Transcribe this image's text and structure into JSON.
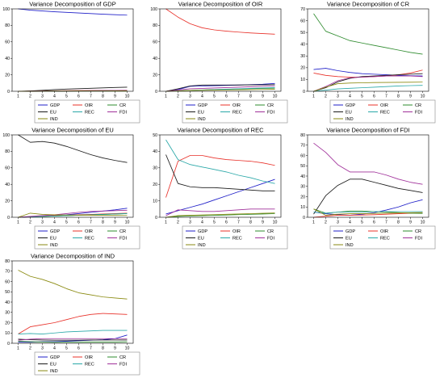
{
  "chart_data": [
    {
      "type": "line",
      "title": "Variance Decomposition of GDP",
      "x": [
        1,
        2,
        3,
        4,
        5,
        6,
        7,
        8,
        9,
        10
      ],
      "ylim": [
        0,
        100
      ],
      "yticks": [
        0,
        20,
        40,
        60,
        80,
        100
      ],
      "legend_position": "bottom",
      "series": [
        {
          "name": "GDP",
          "color": "#1f1fc8",
          "values": [
            100,
            98.5,
            97.5,
            96.5,
            95.8,
            95.0,
            94.3,
            93.6,
            93.0,
            92.4
          ]
        },
        {
          "name": "OIR",
          "color": "#e8312a",
          "values": [
            0,
            0.2,
            0.4,
            0.6,
            0.7,
            0.8,
            0.9,
            1.0,
            1.1,
            1.2
          ]
        },
        {
          "name": "CR",
          "color": "#2e8b2e",
          "values": [
            0,
            0.1,
            0.2,
            0.3,
            0.4,
            0.5,
            0.6,
            0.7,
            0.8,
            0.9
          ]
        },
        {
          "name": "EU",
          "color": "#1a1a1a",
          "values": [
            0,
            0.5,
            1.2,
            2.0,
            2.6,
            3.1,
            3.6,
            4.1,
            4.6,
            5.0
          ]
        },
        {
          "name": "REC",
          "color": "#2aa8a8",
          "values": [
            0,
            0.1,
            0.1,
            0.2,
            0.2,
            0.3,
            0.3,
            0.3,
            0.4,
            0.4
          ]
        },
        {
          "name": "FDI",
          "color": "#a0309a",
          "values": [
            0,
            0.2,
            0.4,
            0.5,
            0.6,
            0.7,
            0.8,
            0.9,
            1.0,
            1.1
          ]
        },
        {
          "name": "IND",
          "color": "#8a8a10",
          "values": [
            0,
            0.1,
            0.2,
            0.3,
            0.3,
            0.4,
            0.5,
            0.5,
            0.6,
            0.6
          ]
        }
      ]
    },
    {
      "type": "line",
      "title": "Variance Decomposition of OIR",
      "x": [
        1,
        2,
        3,
        4,
        5,
        6,
        7,
        8,
        9,
        10
      ],
      "ylim": [
        0,
        100
      ],
      "yticks": [
        0,
        20,
        40,
        60,
        80,
        100
      ],
      "legend_position": "bottom",
      "series": [
        {
          "name": "GDP",
          "color": "#1f1fc8",
          "values": [
            0,
            2.0,
            6.0,
            6.5,
            6.8,
            7.2,
            7.5,
            8.0,
            8.5,
            9.5
          ]
        },
        {
          "name": "OIR",
          "color": "#e8312a",
          "values": [
            100,
            90.0,
            82.0,
            77.0,
            74.5,
            73.0,
            71.8,
            70.8,
            70.0,
            69.3
          ]
        },
        {
          "name": "CR",
          "color": "#2e8b2e",
          "values": [
            0,
            0.5,
            1.0,
            1.5,
            2.0,
            2.4,
            2.8,
            3.2,
            3.5,
            3.8
          ]
        },
        {
          "name": "EU",
          "color": "#1a1a1a",
          "values": [
            0,
            3.0,
            6.5,
            7.5,
            7.5,
            7.6,
            7.7,
            7.8,
            7.9,
            8.0
          ]
        },
        {
          "name": "REC",
          "color": "#2aa8a8",
          "values": [
            0,
            0.5,
            1.0,
            1.5,
            2.0,
            2.5,
            3.0,
            3.5,
            4.0,
            4.5
          ]
        },
        {
          "name": "FDI",
          "color": "#a0309a",
          "values": [
            0,
            1.5,
            3.0,
            3.5,
            4.0,
            4.5,
            5.0,
            5.5,
            6.0,
            6.5
          ]
        },
        {
          "name": "IND",
          "color": "#8a8a10",
          "values": [
            0,
            0.5,
            1.0,
            1.2,
            1.4,
            1.6,
            1.8,
            2.0,
            2.2,
            2.4
          ]
        }
      ]
    },
    {
      "type": "line",
      "title": "Variance Decomposition of CR",
      "x": [
        1,
        2,
        3,
        4,
        5,
        6,
        7,
        8,
        9,
        10
      ],
      "ylim": [
        0,
        70
      ],
      "yticks": [
        0,
        10,
        20,
        30,
        40,
        50,
        60,
        70
      ],
      "legend_position": "bottom",
      "series": [
        {
          "name": "GDP",
          "color": "#1f1fc8",
          "values": [
            18.5,
            19.5,
            17.5,
            16.0,
            15.0,
            14.5,
            14.0,
            13.5,
            13.2,
            13.0
          ]
        },
        {
          "name": "OIR",
          "color": "#e8312a",
          "values": [
            15.5,
            13.5,
            12.5,
            12.0,
            12.0,
            12.5,
            13.0,
            14.0,
            15.5,
            18.0
          ]
        },
        {
          "name": "CR",
          "color": "#2e8b2e",
          "values": [
            66.0,
            51.0,
            47.0,
            43.0,
            41.0,
            39.0,
            37.0,
            35.0,
            33.0,
            31.5
          ]
        },
        {
          "name": "EU",
          "color": "#1a1a1a",
          "values": [
            0,
            3.0,
            8.0,
            11.0,
            12.5,
            13.0,
            13.5,
            14.0,
            14.5,
            15.0
          ]
        },
        {
          "name": "REC",
          "color": "#2aa8a8",
          "values": [
            0,
            1.0,
            2.0,
            2.5,
            3.0,
            3.5,
            4.0,
            4.5,
            4.8,
            5.0
          ]
        },
        {
          "name": "FDI",
          "color": "#a0309a",
          "values": [
            0,
            4.0,
            9.0,
            11.5,
            12.0,
            12.5,
            13.0,
            13.0,
            13.0,
            12.5
          ]
        },
        {
          "name": "IND",
          "color": "#8a8a10",
          "values": [
            0,
            3.5,
            6.5,
            7.0,
            7.2,
            7.4,
            7.5,
            7.6,
            7.7,
            7.8
          ]
        }
      ]
    },
    {
      "type": "line",
      "title": "Variance Decomposition of EU",
      "x": [
        1,
        2,
        3,
        4,
        5,
        6,
        7,
        8,
        9,
        10
      ],
      "ylim": [
        0,
        100
      ],
      "yticks": [
        0,
        20,
        40,
        60,
        80,
        100
      ],
      "legend_position": "bottom",
      "series": [
        {
          "name": "GDP",
          "color": "#1f1fc8",
          "values": [
            0,
            0.5,
            1.0,
            2.0,
            3.0,
            4.5,
            6.0,
            7.5,
            9.0,
            11.0
          ]
        },
        {
          "name": "OIR",
          "color": "#e8312a",
          "values": [
            0,
            0.5,
            1.5,
            2.0,
            2.5,
            3.0,
            3.5,
            4.0,
            4.5,
            5.0
          ]
        },
        {
          "name": "CR",
          "color": "#2e8b2e",
          "values": [
            0,
            0.5,
            1.0,
            1.5,
            2.0,
            2.5,
            3.0,
            3.5,
            4.0,
            4.5
          ]
        },
        {
          "name": "EU",
          "color": "#1a1a1a",
          "values": [
            100,
            91.0,
            92.0,
            90.0,
            86.0,
            81.0,
            76.0,
            72.0,
            69.0,
            66.5
          ]
        },
        {
          "name": "REC",
          "color": "#2aa8a8",
          "values": [
            0,
            0.5,
            1.0,
            1.5,
            2.0,
            2.5,
            3.0,
            3.5,
            4.0,
            4.5
          ]
        },
        {
          "name": "FDI",
          "color": "#a0309a",
          "values": [
            0,
            1.0,
            2.0,
            3.0,
            4.5,
            6.0,
            7.0,
            7.5,
            8.0,
            8.5
          ]
        },
        {
          "name": "IND",
          "color": "#8a8a10",
          "values": [
            0,
            5.0,
            3.5,
            3.0,
            2.8,
            2.6,
            2.5,
            2.4,
            2.3,
            2.2
          ]
        }
      ]
    },
    {
      "type": "line",
      "title": "Variance Decomposition of REC",
      "x": [
        1,
        2,
        3,
        4,
        5,
        6,
        7,
        8,
        9,
        10
      ],
      "ylim": [
        0,
        50
      ],
      "yticks": [
        0,
        10,
        20,
        30,
        40,
        50
      ],
      "legend_position": "bottom",
      "series": [
        {
          "name": "GDP",
          "color": "#1f1fc8",
          "values": [
            2.0,
            4.0,
            6.0,
            8.0,
            10.5,
            13.0,
            15.5,
            18.0,
            20.5,
            23.0
          ]
        },
        {
          "name": "OIR",
          "color": "#e8312a",
          "values": [
            12.0,
            34.0,
            37.5,
            37.5,
            36.0,
            35.0,
            34.5,
            34.0,
            33.0,
            31.5
          ]
        },
        {
          "name": "CR",
          "color": "#2e8b2e",
          "values": [
            0,
            0.5,
            0.8,
            1.0,
            1.2,
            1.4,
            1.6,
            1.8,
            2.0,
            2.2
          ]
        },
        {
          "name": "EU",
          "color": "#1a1a1a",
          "values": [
            38.0,
            20.5,
            18.5,
            18.0,
            18.0,
            17.5,
            17.0,
            16.5,
            16.0,
            16.0
          ]
        },
        {
          "name": "REC",
          "color": "#2aa8a8",
          "values": [
            47.0,
            35.0,
            32.0,
            30.5,
            29.0,
            27.5,
            25.5,
            24.0,
            22.0,
            20.5
          ]
        },
        {
          "name": "FDI",
          "color": "#a0309a",
          "values": [
            1.0,
            4.5,
            4.0,
            3.5,
            3.5,
            4.0,
            4.5,
            5.0,
            5.0,
            5.0
          ]
        },
        {
          "name": "IND",
          "color": "#8a8a10",
          "values": [
            0,
            1.0,
            1.2,
            1.4,
            1.6,
            1.8,
            2.0,
            2.2,
            2.4,
            2.6
          ]
        }
      ]
    },
    {
      "type": "line",
      "title": "Variance Decomposition of FDI",
      "x": [
        1,
        2,
        3,
        4,
        5,
        6,
        7,
        8,
        9,
        10
      ],
      "ylim": [
        0,
        80
      ],
      "yticks": [
        0,
        10,
        20,
        30,
        40,
        50,
        60,
        70,
        80
      ],
      "legend_position": "bottom",
      "series": [
        {
          "name": "GDP",
          "color": "#1f1fc8",
          "values": [
            5.0,
            3.5,
            2.5,
            2.0,
            3.0,
            4.5,
            7.0,
            10.0,
            14.0,
            17.0
          ]
        },
        {
          "name": "OIR",
          "color": "#e8312a",
          "values": [
            0,
            1.0,
            2.0,
            2.0,
            2.2,
            2.5,
            3.0,
            3.5,
            4.0,
            4.5
          ]
        },
        {
          "name": "CR",
          "color": "#2e8b2e",
          "values": [
            8.0,
            4.0,
            5.0,
            6.0,
            6.0,
            5.5,
            5.0,
            4.5,
            4.0,
            3.8
          ]
        },
        {
          "name": "EU",
          "color": "#1a1a1a",
          "values": [
            3.0,
            21.0,
            31.0,
            37.0,
            37.0,
            34.0,
            31.0,
            28.0,
            26.0,
            24.0
          ]
        },
        {
          "name": "REC",
          "color": "#2aa8a8",
          "values": [
            5.0,
            4.0,
            5.0,
            5.0,
            5.0,
            5.5,
            5.5,
            5.5,
            5.5,
            5.5
          ]
        },
        {
          "name": "FDI",
          "color": "#a0309a",
          "values": [
            72.0,
            63.0,
            51.0,
            44.0,
            44.0,
            44.0,
            41.0,
            37.0,
            34.0,
            32.0
          ]
        },
        {
          "name": "IND",
          "color": "#8a8a10",
          "values": [
            8.0,
            2.0,
            3.0,
            3.5,
            3.5,
            3.8,
            4.0,
            4.2,
            4.4,
            4.6
          ]
        }
      ]
    },
    {
      "type": "line",
      "title": "Variance Decomposition of IND",
      "x": [
        1,
        2,
        3,
        4,
        5,
        6,
        7,
        8,
        9,
        10
      ],
      "ylim": [
        0,
        80
      ],
      "yticks": [
        0,
        10,
        20,
        30,
        40,
        50,
        60,
        70,
        80
      ],
      "legend_position": "bottom",
      "series": [
        {
          "name": "GDP",
          "color": "#1f1fc8",
          "values": [
            1.0,
            1.0,
            1.5,
            1.5,
            2.0,
            2.5,
            3.0,
            3.5,
            4.5,
            8.0
          ]
        },
        {
          "name": "OIR",
          "color": "#e8312a",
          "values": [
            9.0,
            16.0,
            18.0,
            20.0,
            23.0,
            26.0,
            28.0,
            29.0,
            28.5,
            28.0
          ]
        },
        {
          "name": "CR",
          "color": "#2e8b2e",
          "values": [
            2.0,
            1.5,
            1.2,
            1.0,
            1.0,
            1.0,
            1.2,
            1.2,
            1.2,
            1.4
          ]
        },
        {
          "name": "EU",
          "color": "#1a1a1a",
          "values": [
            4.0,
            3.5,
            3.2,
            3.0,
            3.0,
            3.0,
            3.2,
            3.2,
            3.2,
            3.2
          ]
        },
        {
          "name": "REC",
          "color": "#2aa8a8",
          "values": [
            9.0,
            9.5,
            9.0,
            10.0,
            11.0,
            11.5,
            12.0,
            12.5,
            12.5,
            12.5
          ]
        },
        {
          "name": "FDI",
          "color": "#a0309a",
          "values": [
            3.0,
            4.0,
            4.5,
            4.5,
            4.5,
            4.5,
            4.5,
            4.5,
            4.5,
            4.5
          ]
        },
        {
          "name": "IND",
          "color": "#8a8a10",
          "values": [
            71.0,
            65.0,
            62.0,
            58.0,
            53.0,
            49.0,
            47.0,
            45.0,
            44.0,
            43.0
          ]
        }
      ]
    }
  ]
}
